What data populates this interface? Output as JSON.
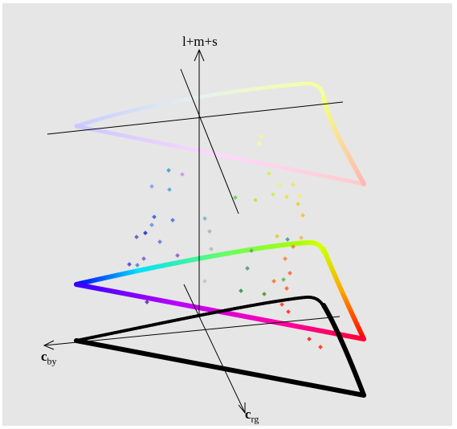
{
  "axes": {
    "vertical": "l+m+s",
    "by_main": "c",
    "by_sub": "by",
    "rg_main": "c",
    "rg_sub": "rg"
  },
  "colors": {
    "background": "#e6e6e6",
    "axis": "#000000",
    "spectral_primaries": [
      "#0000ff",
      "#ff00ff",
      "#ff0000",
      "#ffff00",
      "#00ff00",
      "#00ffff"
    ]
  }
}
